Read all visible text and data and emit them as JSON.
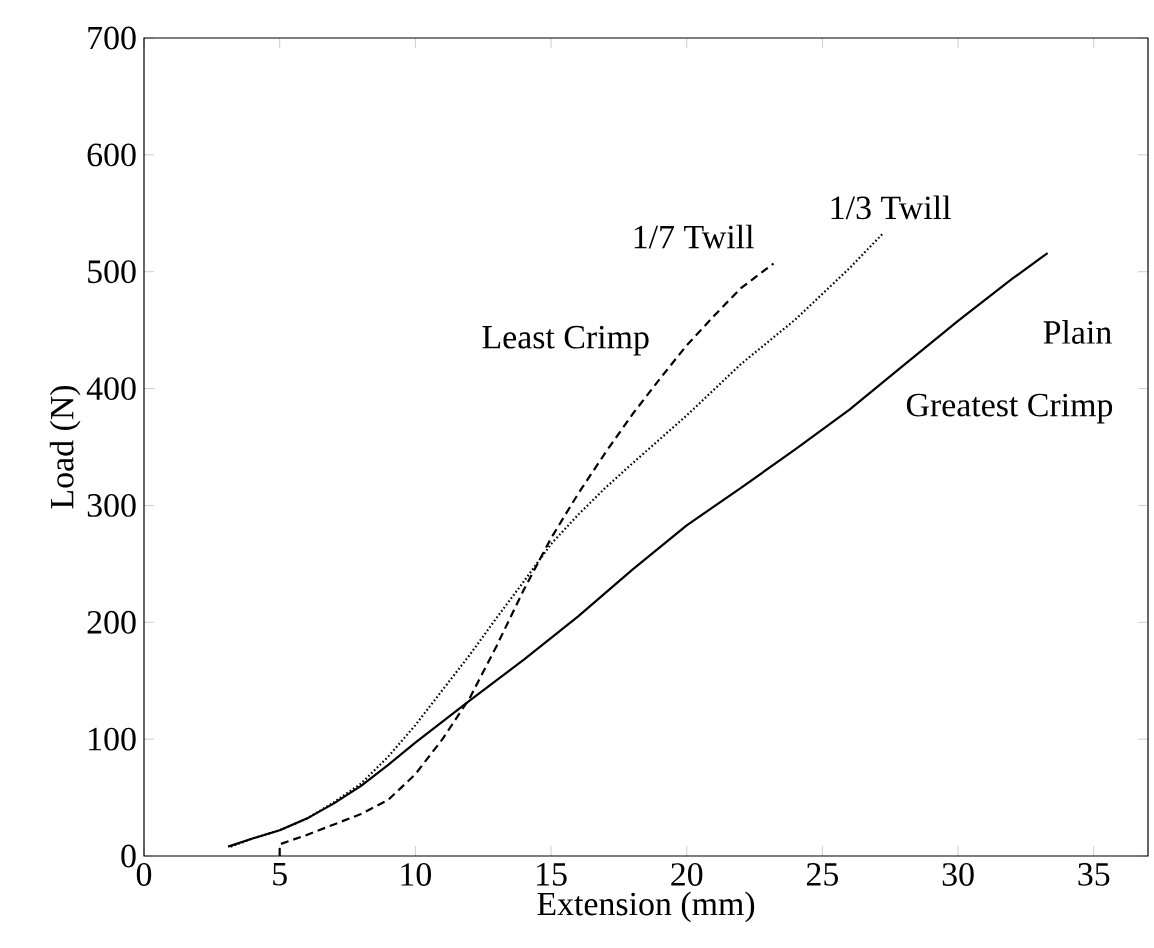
{
  "chart_data": {
    "type": "line",
    "xlabel": "Extension (mm)",
    "ylabel": "Load (N)",
    "xlim": [
      0,
      37
    ],
    "ylim": [
      0,
      700
    ],
    "xticks": [
      0,
      5,
      10,
      15,
      20,
      25,
      30,
      35
    ],
    "yticks": [
      0,
      100,
      200,
      300,
      400,
      500,
      600,
      700
    ],
    "grid": false,
    "legend": false,
    "marker": "none",
    "series": [
      {
        "name": "1/7 Twill",
        "color": "#000000",
        "line_style": "dashed",
        "x": [
          5,
          5,
          6,
          7,
          8,
          9,
          10,
          11,
          12,
          13,
          14,
          15,
          16,
          17,
          18,
          19,
          20,
          21,
          22,
          23.2
        ],
        "values": [
          0,
          10,
          18,
          27,
          36,
          48,
          70,
          100,
          135,
          180,
          228,
          272,
          310,
          345,
          378,
          408,
          437,
          462,
          486,
          507
        ]
      },
      {
        "name": "1/3 Twill",
        "color": "#000000",
        "line_style": "dotted",
        "x": [
          3.2,
          4,
          5,
          6,
          7,
          8,
          9,
          10,
          11,
          12,
          13,
          14,
          15,
          16,
          17,
          18,
          20,
          22,
          24,
          26,
          27.2
        ],
        "values": [
          8,
          15,
          22,
          32,
          46,
          62,
          85,
          112,
          142,
          172,
          204,
          235,
          267,
          292,
          315,
          336,
          377,
          421,
          459,
          503,
          532
        ]
      },
      {
        "name": "Plain",
        "color": "#000000",
        "line_style": "solid",
        "x": [
          3.1,
          4,
          5,
          6,
          7,
          8,
          9,
          10,
          11,
          12,
          14,
          16,
          18,
          20,
          22,
          24,
          26,
          28,
          30,
          32,
          33.3
        ],
        "values": [
          8,
          15,
          22,
          32,
          45,
          60,
          78,
          97,
          115,
          133,
          168,
          205,
          245,
          283,
          315,
          348,
          382,
          420,
          458,
          494,
          516
        ]
      }
    ],
    "annotations": [
      "Least Crimp",
      "Greatest Crimp"
    ]
  }
}
